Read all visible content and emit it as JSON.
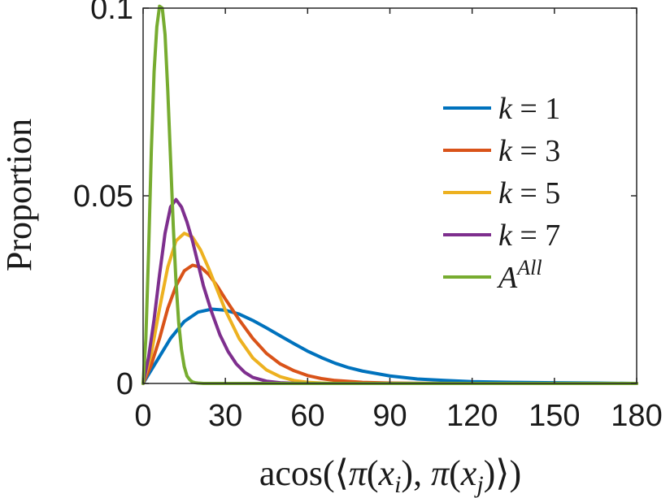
{
  "chart_data": {
    "type": "line",
    "title": "",
    "xlabel": "acos(⟨π(x_i), π(x_j)⟩)",
    "ylabel": "Proportion",
    "xlim": [
      0,
      180
    ],
    "ylim": [
      0,
      0.1
    ],
    "xticks": [
      0,
      30,
      60,
      90,
      120,
      150,
      180
    ],
    "xtick_labels": [
      "0",
      "30",
      "60",
      "90",
      "120",
      "150",
      "180"
    ],
    "yticks": [
      0,
      0.05,
      0.1
    ],
    "ytick_labels": [
      "0",
      "0.05",
      "0.1"
    ],
    "grid": false,
    "legend_position": "right",
    "series": [
      {
        "name": "k = 1",
        "legend_label": "k = 1",
        "color": "#0072BD",
        "x": [
          0,
          5,
          10,
          15,
          20,
          25,
          30,
          35,
          40,
          45,
          50,
          55,
          60,
          65,
          70,
          75,
          80,
          90,
          100,
          110,
          120,
          135,
          150,
          165,
          180
        ],
        "y": [
          0,
          0.006,
          0.012,
          0.0165,
          0.019,
          0.0198,
          0.0195,
          0.0185,
          0.0168,
          0.0148,
          0.0127,
          0.0106,
          0.0086,
          0.0069,
          0.0054,
          0.0042,
          0.0033,
          0.002,
          0.0012,
          0.0008,
          0.0005,
          0.0003,
          0.0002,
          0.0001,
          0
        ]
      },
      {
        "name": "k = 3",
        "legend_label": "k = 3",
        "color": "#D95319",
        "x": [
          0,
          3,
          6,
          9,
          12,
          15,
          18,
          21,
          24,
          27,
          30,
          35,
          40,
          45,
          50,
          55,
          60,
          65,
          70,
          80,
          90,
          100,
          120,
          150,
          180
        ],
        "y": [
          0,
          0.005,
          0.012,
          0.02,
          0.026,
          0.03,
          0.0315,
          0.031,
          0.029,
          0.026,
          0.0225,
          0.017,
          0.012,
          0.008,
          0.0052,
          0.0034,
          0.0021,
          0.0013,
          0.0008,
          0.0003,
          0.0001,
          5e-05,
          0,
          0,
          0
        ]
      },
      {
        "name": "k = 5",
        "legend_label": "k = 5",
        "color": "#EDB120",
        "x": [
          0,
          3,
          6,
          9,
          12,
          15,
          18,
          21,
          24,
          27,
          30,
          35,
          40,
          45,
          50,
          55,
          60,
          65,
          70,
          80,
          90,
          120,
          150,
          180
        ],
        "y": [
          0,
          0.008,
          0.02,
          0.031,
          0.038,
          0.04,
          0.039,
          0.0355,
          0.0305,
          0.025,
          0.0195,
          0.012,
          0.0068,
          0.0036,
          0.0018,
          0.0008,
          0.0003,
          0.0001,
          0,
          0,
          0,
          0,
          0,
          0
        ]
      },
      {
        "name": "k = 7",
        "legend_label": "k = 7",
        "color": "#7E2F8E",
        "x": [
          0,
          2,
          4,
          6,
          8,
          10,
          12,
          14,
          16,
          18,
          20,
          22,
          25,
          28,
          31,
          34,
          37,
          40,
          45,
          50,
          55,
          60,
          70,
          90,
          120,
          150,
          180
        ],
        "y": [
          0,
          0.007,
          0.017,
          0.029,
          0.04,
          0.047,
          0.049,
          0.047,
          0.043,
          0.038,
          0.032,
          0.026,
          0.019,
          0.013,
          0.0085,
          0.0052,
          0.003,
          0.0016,
          0.0006,
          0.0002,
          5e-05,
          0,
          0,
          0,
          0,
          0,
          0
        ]
      },
      {
        "name": "A^All",
        "legend_label": "A",
        "legend_superscript": "All",
        "color": "#77AC30",
        "x": [
          0,
          1,
          2,
          3,
          4,
          5,
          6,
          7,
          8,
          9,
          10,
          11,
          12,
          13,
          14,
          15,
          16,
          17,
          18,
          19,
          20,
          22,
          25,
          30,
          60,
          90,
          120,
          150,
          180
        ],
        "y": [
          0,
          0.012,
          0.035,
          0.062,
          0.083,
          0.095,
          0.1005,
          0.1,
          0.093,
          0.078,
          0.06,
          0.042,
          0.027,
          0.016,
          0.009,
          0.0045,
          0.002,
          0.001,
          0.0004,
          0.0002,
          0.0001,
          0,
          0,
          0,
          0,
          0,
          0,
          0,
          0
        ]
      }
    ]
  }
}
